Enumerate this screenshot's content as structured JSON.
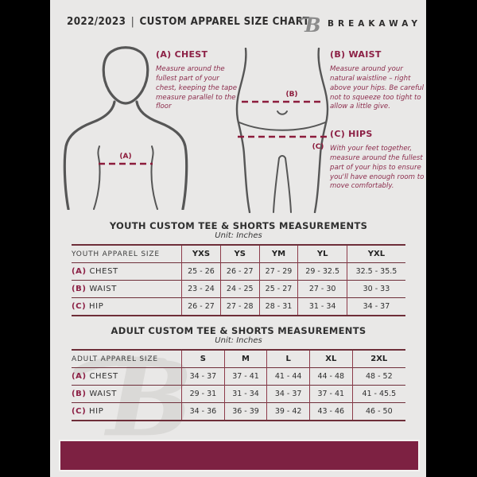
{
  "header": {
    "year": "2022/2023",
    "separator": "|",
    "title": "CUSTOM APPAREL SIZE CHART",
    "brand": "BREAKAWAY",
    "logo_glyph": "B"
  },
  "diagram": {
    "chest_marker": "(A)",
    "waist_marker": "(B)",
    "hips_marker": "(C)"
  },
  "instructions": {
    "chest": {
      "heading": "(A) CHEST",
      "body": "Measure around the fullest part of your chest, keeping the tape measure parallel to the floor"
    },
    "waist": {
      "heading": "(B) WAIST",
      "body": "Measure around your natural waistline – right above your hips. Be careful not to squeeze too tight to allow a little give."
    },
    "hips": {
      "heading": "(C) HIPS",
      "body": "With your feet together, measure around the fullest part of your hips to ensure you'll have enough room to move comfortably."
    }
  },
  "youth": {
    "section_title": "YOUTH CUSTOM TEE & SHORTS MEASUREMENTS",
    "unit": "Unit: Inches",
    "table": {
      "header": [
        "YOUTH APPAREL SIZE",
        "YXS",
        "YS",
        "YM",
        "YL",
        "YXL"
      ],
      "rows": [
        {
          "prefix": "(A)",
          "label": "CHEST",
          "values": [
            "25 - 26",
            "26 - 27",
            "27 - 29",
            "29 - 32.5",
            "32.5 - 35.5"
          ]
        },
        {
          "prefix": "(B)",
          "label": "WAIST",
          "values": [
            "23 - 24",
            "24 - 25",
            "25 - 27",
            "27 - 30",
            "30 - 33"
          ]
        },
        {
          "prefix": "(C)",
          "label": "HIP",
          "values": [
            "26 - 27",
            "27 - 28",
            "28 - 31",
            "31 - 34",
            "34 - 37"
          ]
        }
      ]
    }
  },
  "adult": {
    "section_title": "ADULT CUSTOM TEE & SHORTS MEASUREMENTS",
    "unit": "Unit: Inches",
    "table": {
      "header": [
        "ADULT APPAREL SIZE",
        "S",
        "M",
        "L",
        "XL",
        "2XL"
      ],
      "rows": [
        {
          "prefix": "(A)",
          "label": "CHEST",
          "values": [
            "34 - 37",
            "37 - 41",
            "41 - 44",
            "44 - 48",
            "48 - 52"
          ]
        },
        {
          "prefix": "(B)",
          "label": "WAIST",
          "values": [
            "29 - 31",
            "31 - 34",
            "34 - 37",
            "37 - 41",
            "41 - 45.5"
          ]
        },
        {
          "prefix": "(C)",
          "label": "HIP",
          "values": [
            "34 - 36",
            "36 - 39",
            "39 - 42",
            "43 - 46",
            "46 - 50"
          ]
        }
      ]
    }
  },
  "colors": {
    "accent_maroon": "#7d2142",
    "heading_maroon": "#8c2045",
    "dashed_line": "#8c1c3c",
    "table_border": "#6e2e39",
    "page_background": "#e9e8e7",
    "side_bars": "#000000"
  }
}
